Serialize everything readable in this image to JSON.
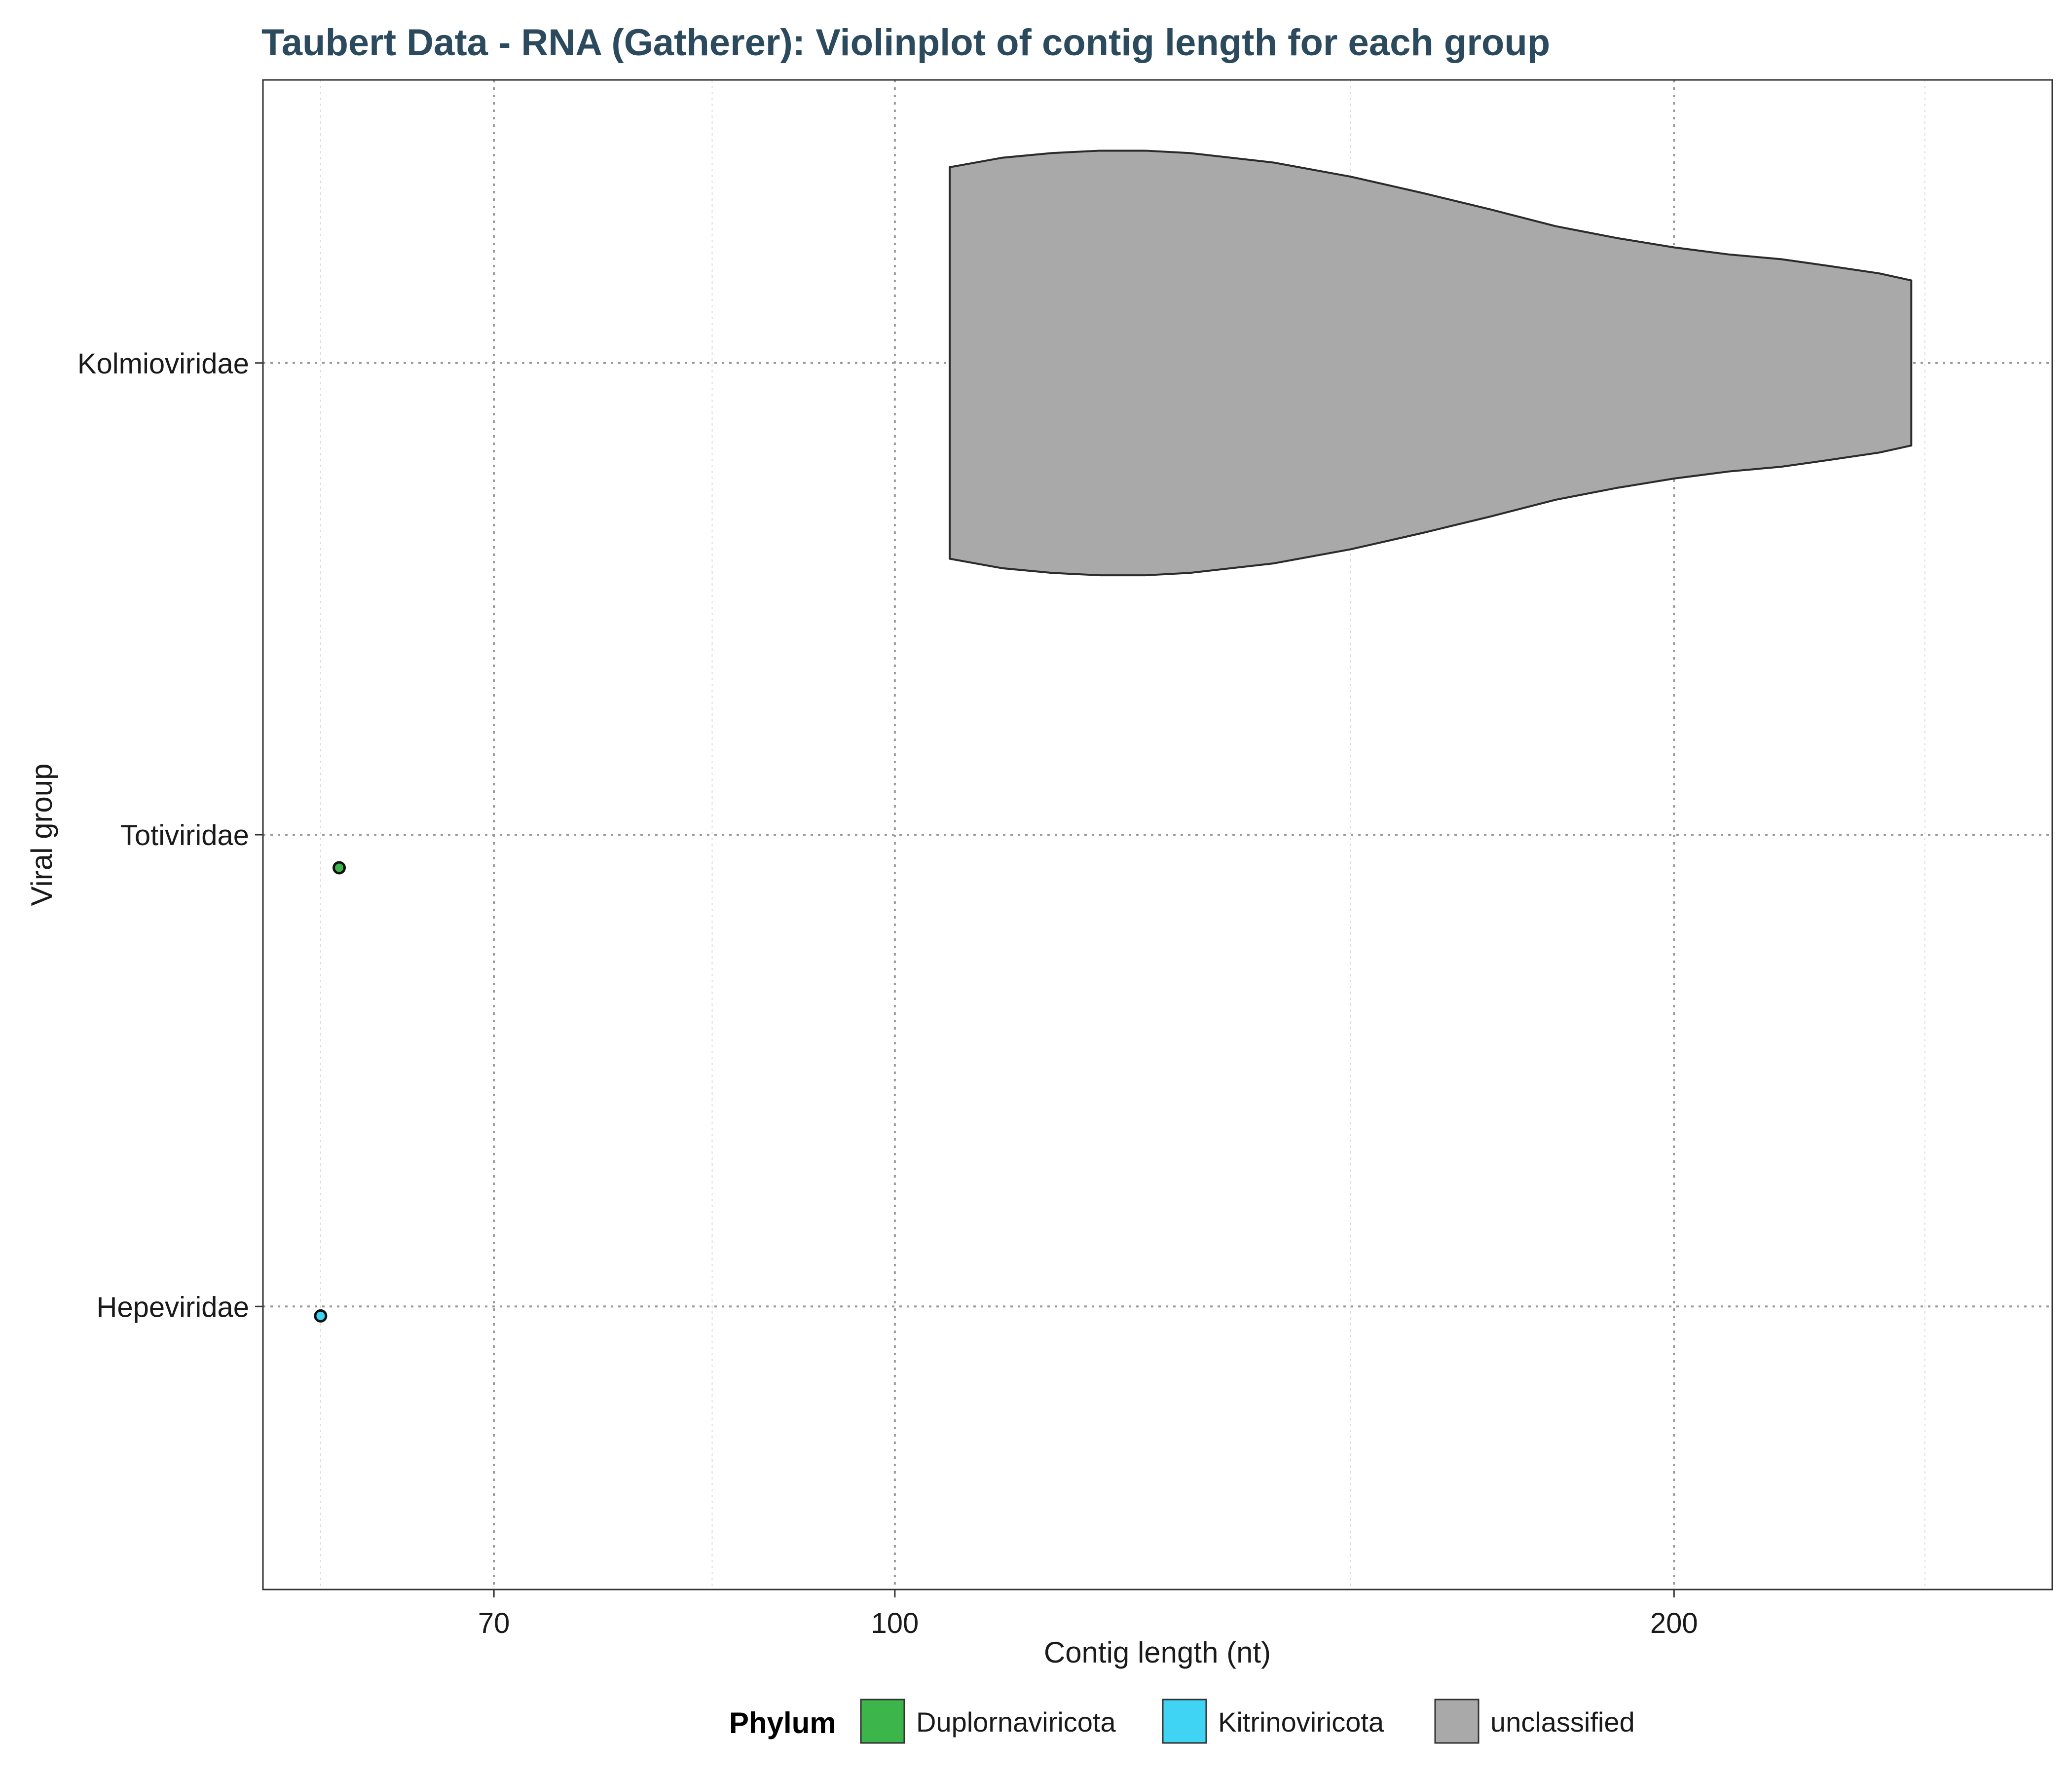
{
  "chart_data": {
    "type": "violin",
    "title": "Taubert Data - RNA (Gatherer): Violinplot of contig length for each group",
    "xlabel": "Contig length (nt)",
    "ylabel": "Viral group",
    "x_scale": "log10",
    "xlim": [
      57,
      280
    ],
    "x_ticks": [
      70,
      100,
      200
    ],
    "x_tick_labels": [
      "70",
      "100",
      "200"
    ],
    "x_minor_ticks": [
      60,
      85,
      150,
      250
    ],
    "categories": [
      "Hepeviridae",
      "Totiviridae",
      "Kolmiovirida"
    ],
    "category_labels": [
      "Hepeviridae",
      "Totiviridae",
      "Kolmioviridae"
    ],
    "grid": true,
    "legend": {
      "title": "Phylum",
      "position": "bottom",
      "entries": [
        {
          "label": "Duplornaviricota",
          "color": "#3cb54a"
        },
        {
          "label": "Kitrinoviricota",
          "color": "#3fd4f4"
        },
        {
          "label": "unclassified",
          "color": "#a9a9a9"
        }
      ]
    },
    "violins": [
      {
        "group": "Kolmioviridae",
        "phylum": "unclassified",
        "color": "#a9a9a9",
        "min": 105,
        "max": 247,
        "density": [
          [
            105,
            0.83
          ],
          [
            110,
            0.87
          ],
          [
            115,
            0.89
          ],
          [
            120,
            0.9
          ],
          [
            125,
            0.9
          ],
          [
            130,
            0.89
          ],
          [
            140,
            0.85
          ],
          [
            150,
            0.79
          ],
          [
            160,
            0.72
          ],
          [
            170,
            0.65
          ],
          [
            180,
            0.58
          ],
          [
            190,
            0.53
          ],
          [
            200,
            0.49
          ],
          [
            210,
            0.46
          ],
          [
            220,
            0.44
          ],
          [
            230,
            0.41
          ],
          [
            240,
            0.38
          ],
          [
            247,
            0.35
          ]
        ]
      }
    ],
    "points": [
      {
        "group": "Totiviridae",
        "phylum": "Duplornaviricota",
        "x": 61,
        "jitter": -0.07,
        "color": "#3cb54a"
      },
      {
        "group": "Hepeviridae",
        "phylum": "Kitrinoviricota",
        "x": 60,
        "jitter": -0.02,
        "color": "#3fd4f4"
      }
    ]
  }
}
